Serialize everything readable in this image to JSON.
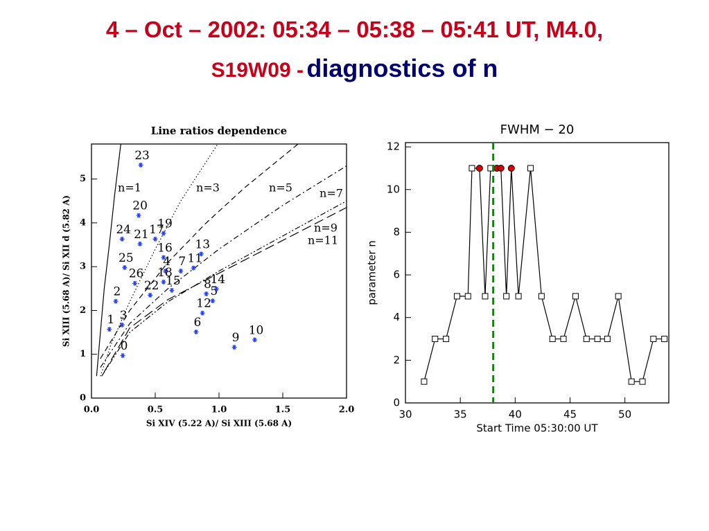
{
  "header": {
    "line1": "4 – Oct – 2002: 05:34 – 05:38 – 05:41 UT, M4.0,",
    "part2": "S19W09 -",
    "part3": "diagnostics of n"
  },
  "chart_data": [
    {
      "type": "scatter",
      "title": "Line ratios dependence",
      "xlabel": "Si XIV (5.22 A)/ Si XIII (5.68 A)",
      "ylabel": "Si XIII (5.68 A)/ Si XII d (5.82 A)",
      "xlim": [
        0,
        2
      ],
      "ylim": [
        0,
        5.8
      ],
      "xticks": [
        {
          "value": 0,
          "label": "0.0"
        },
        0.5,
        {
          "value": 1,
          "label": "1.0"
        },
        1.5,
        {
          "value": 2,
          "label": "2.0"
        }
      ],
      "yticks": [
        0,
        1,
        2,
        3,
        4,
        5
      ],
      "points": {
        "color": "#2040ff",
        "labels": [
          "0",
          "1",
          "2",
          "3",
          "4",
          "5",
          "6",
          "7",
          "8",
          "9",
          "10",
          "11",
          "12",
          "13",
          "14",
          "15",
          "16",
          "17",
          "18",
          "19",
          "20",
          "21",
          "22",
          "23",
          "24",
          "25",
          "26"
        ],
        "x": [
          0.245,
          0.14,
          0.19,
          0.24,
          0.58,
          0.95,
          0.82,
          0.7,
          0.9,
          1.12,
          1.28,
          0.8,
          0.87,
          0.86,
          0.98,
          0.63,
          0.565,
          0.5,
          0.565,
          0.565,
          0.37,
          0.38,
          0.46,
          0.386,
          0.24,
          0.26,
          0.34
        ],
        "values": [
          0.97,
          1.57,
          2.21,
          1.67,
          2.9,
          2.22,
          1.51,
          2.9,
          2.38,
          1.16,
          1.33,
          2.97,
          1.94,
          3.29,
          2.49,
          2.46,
          3.21,
          3.63,
          2.65,
          3.76,
          4.17,
          3.52,
          2.35,
          5.32,
          3.63,
          2.98,
          2.62
        ]
      },
      "series": [
        {
          "name": "n=1",
          "dash": "solid",
          "x": [
            0.04,
            0.07,
            0.1,
            0.14,
            0.18,
            0.23
          ],
          "values": [
            0.5,
            1.5,
            2.5,
            3.5,
            4.6,
            5.8
          ]
        },
        {
          "name": "n=3",
          "dash": "dotted",
          "x": [
            0.07,
            0.15,
            0.3,
            0.5,
            0.7,
            0.99
          ],
          "values": [
            0.5,
            1.2,
            2.2,
            3.4,
            4.5,
            5.8
          ]
        },
        {
          "name": "n=5",
          "dash": "dashed",
          "x": [
            0.07,
            0.3,
            0.6,
            0.9,
            1.2,
            1.62
          ],
          "values": [
            0.9,
            2.0,
            3.1,
            4.0,
            4.8,
            5.8
          ]
        },
        {
          "name": "n=7",
          "dash": "dashdot",
          "x": [
            0.07,
            0.3,
            0.6,
            1.0,
            1.5,
            2.0
          ],
          "values": [
            0.7,
            1.7,
            2.5,
            3.4,
            4.4,
            5.3
          ]
        },
        {
          "name": "n=9",
          "dash": "dashdotdot",
          "x": [
            0.08,
            0.3,
            0.6,
            1.0,
            1.5,
            2.0
          ],
          "values": [
            0.5,
            1.5,
            2.2,
            2.9,
            3.7,
            4.5
          ]
        },
        {
          "name": "n=11",
          "dash": "longdash",
          "x": [
            0.1,
            0.3,
            0.6,
            1.0,
            1.5,
            2.0
          ],
          "values": [
            0.6,
            1.6,
            2.25,
            2.85,
            3.6,
            4.35
          ]
        }
      ]
    },
    {
      "type": "line",
      "title": "FWHM − 20",
      "xlabel": "Start Time 05:30:00 UT",
      "ylabel": "parameter n",
      "xlim": [
        30,
        54
      ],
      "ylim": [
        0,
        12.2
      ],
      "xticks": [
        30,
        35,
        40,
        45,
        50
      ],
      "yticks": [
        0,
        2,
        4,
        6,
        8,
        10,
        12
      ],
      "series": [
        {
          "color": "#000000",
          "x": [
            31.7,
            32.7,
            33.7,
            34.7,
            35.7,
            36.06,
            36.75,
            37.26,
            37.76,
            38.33,
            38.7,
            39.2,
            39.65,
            40.3,
            41.4,
            42.4,
            43.4,
            44.4,
            45.5,
            46.5,
            47.5,
            48.4,
            49.4,
            50.6,
            51.6,
            52.6,
            53.6
          ],
          "values": [
            1,
            3,
            3,
            5,
            5,
            11,
            11,
            5,
            11,
            11,
            11,
            5,
            11,
            5,
            11,
            5,
            3,
            3,
            5,
            3,
            3,
            3,
            5,
            1,
            1,
            3,
            3
          ],
          "point_colors": [
            "#ffffff",
            "#ffffff",
            "#ffffff",
            "#ffffff",
            "#ffffff",
            "#ffffff",
            "#dd0000",
            "#ffffff",
            "#ffffff",
            "#dd0000",
            "#dd0000",
            "#ffffff",
            "#dd0000",
            "#ffffff",
            "#ffffff",
            "#ffffff",
            "#ffffff",
            "#ffffff",
            "#ffffff",
            "#ffffff",
            "#ffffff",
            "#ffffff",
            "#ffffff",
            "#ffffff",
            "#ffffff",
            "#ffffff",
            "#ffffff"
          ]
        }
      ],
      "vline": {
        "x": 38,
        "color": "#1a7a1a"
      }
    }
  ]
}
